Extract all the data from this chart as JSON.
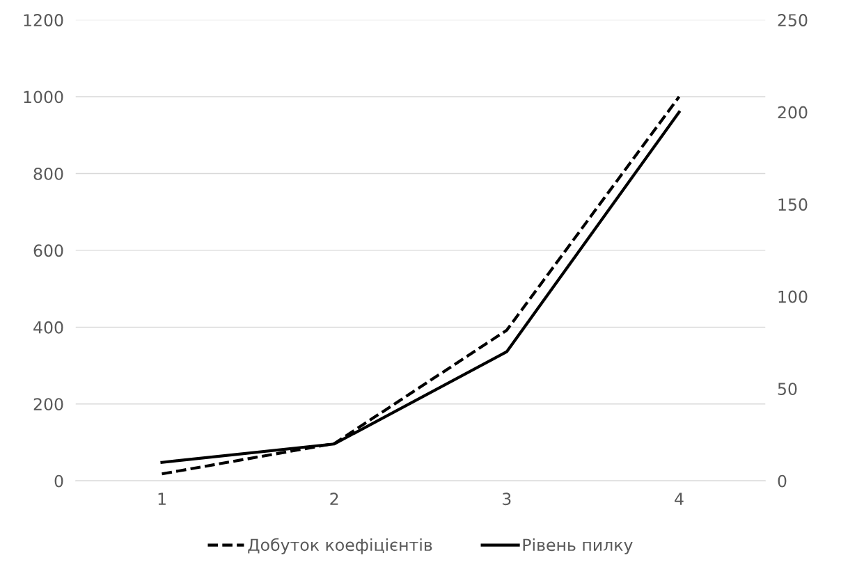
{
  "chart_data": {
    "type": "line",
    "categories": [
      "1",
      "2",
      "3",
      "4"
    ],
    "series": [
      {
        "name": "Добуток коефіцієнтів",
        "color": "#000000",
        "values": [
          18,
          97,
          392,
          1000
        ],
        "line_style": "dashed"
      },
      {
        "name": "Рівень пилку",
        "color": "#000000",
        "values": [
          10,
          20,
          70,
          200
        ],
        "axis": "y2",
        "line_style": "solid"
      }
    ],
    "ylim": [
      0,
      1200
    ],
    "yticks": [
      0,
      200,
      400,
      600,
      800,
      1000,
      1200
    ],
    "y2lim": [
      0,
      250
    ],
    "y2ticks": [
      0,
      50,
      100,
      150,
      200,
      250
    ],
    "grid": "y",
    "legend": "bottom",
    "marker": "none"
  }
}
